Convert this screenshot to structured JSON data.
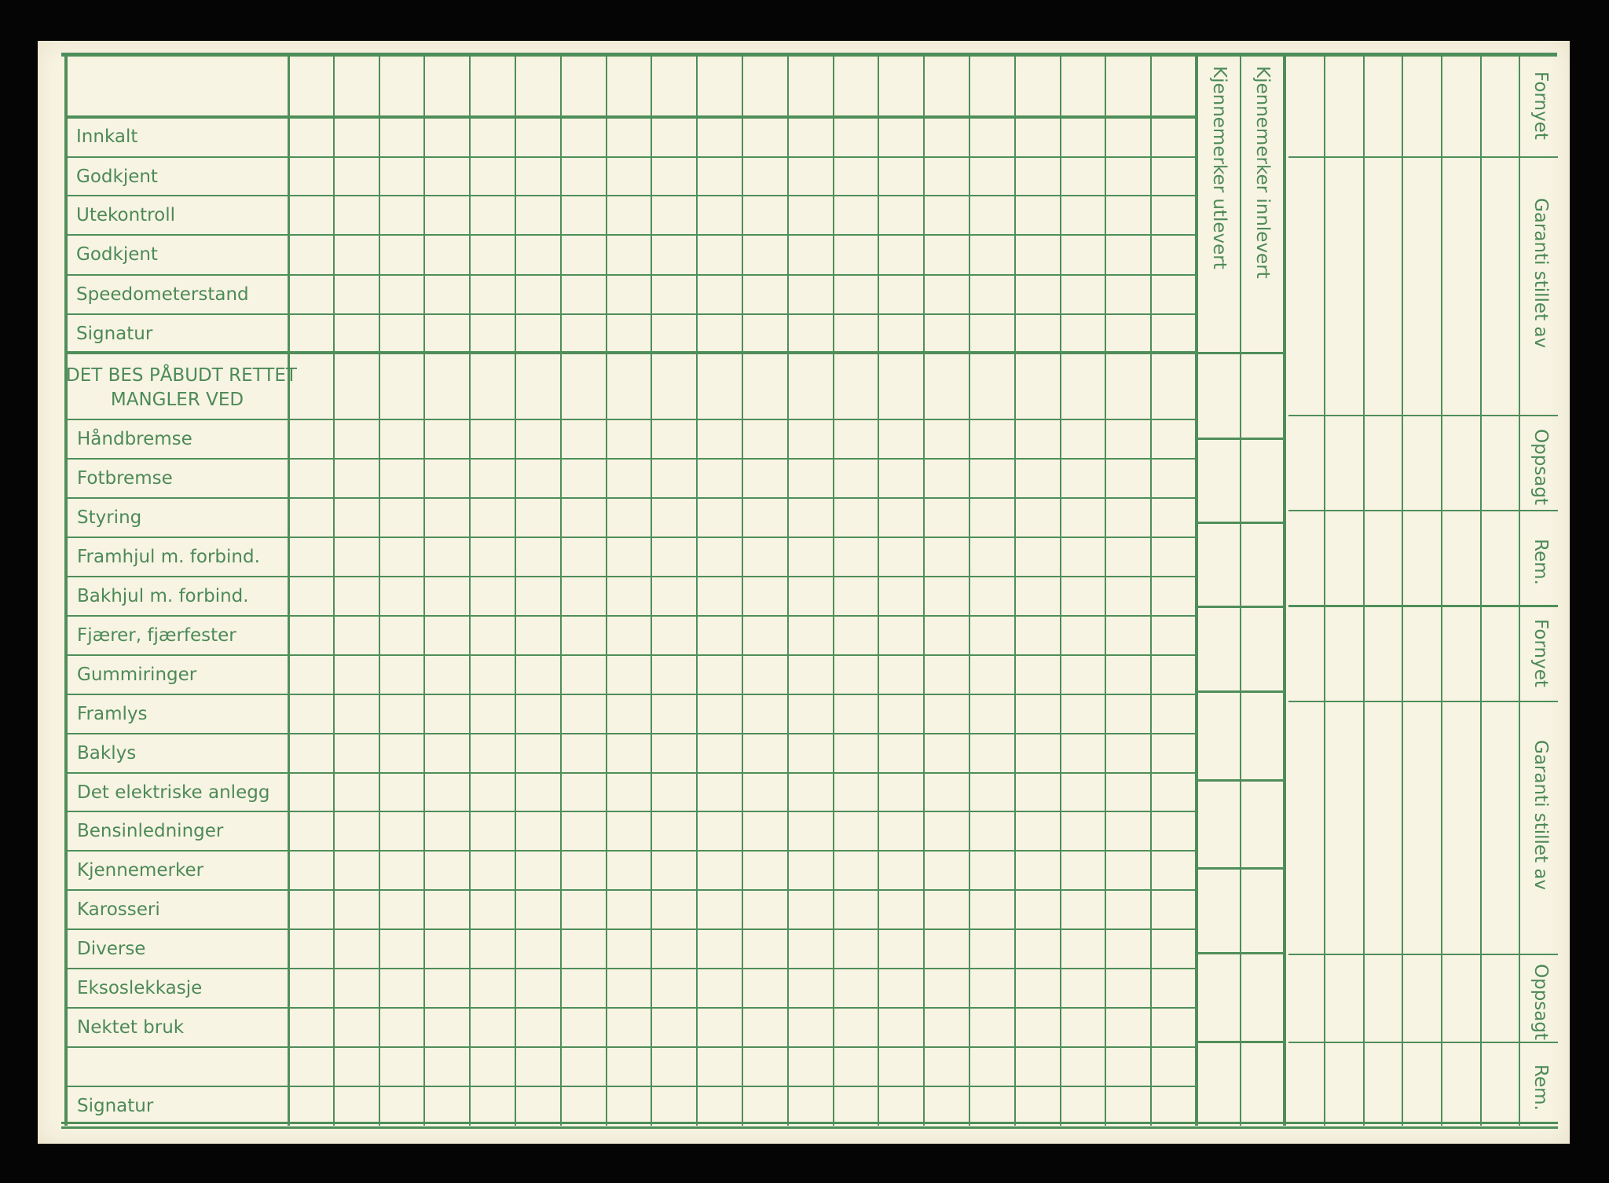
{
  "form": {
    "top_rows": [
      "Innkalt",
      "Godkjent",
      "Utekontroll",
      "Godkjent",
      "Speedometerstand",
      "Signatur"
    ],
    "section_heading_line1": "DET BES PÅBUDT RETTET",
    "section_heading_line2": "MANGLER VED",
    "defect_rows": [
      "Håndbremse",
      "Fotbremse",
      "Styring",
      "Framhjul m. forbind.",
      "Bakhjul m. forbind.",
      "Fjærer, fjærfester",
      "Gummiringer",
      "Framlys",
      "Baklys",
      "Det elektriske anlegg",
      "Bensinledninger",
      "Kjennemerker",
      "Karosseri",
      "Diverse",
      "Eksoslekkasje",
      "Nektet bruk",
      "",
      "Signatur"
    ],
    "plates_in_label": "Kjennemerker innlevert",
    "plates_out_label": "Kjennemerker utlevert",
    "right_labels": [
      "Fornyet",
      "Garanti stillet av",
      "Oppsagt",
      "Rem.",
      "Fornyet",
      "Garanti stillet av",
      "Oppsagt",
      "Rem."
    ]
  },
  "colors": {
    "ink": "#4f8e5a",
    "paper": "#f8f4e3",
    "background": "#050505"
  }
}
